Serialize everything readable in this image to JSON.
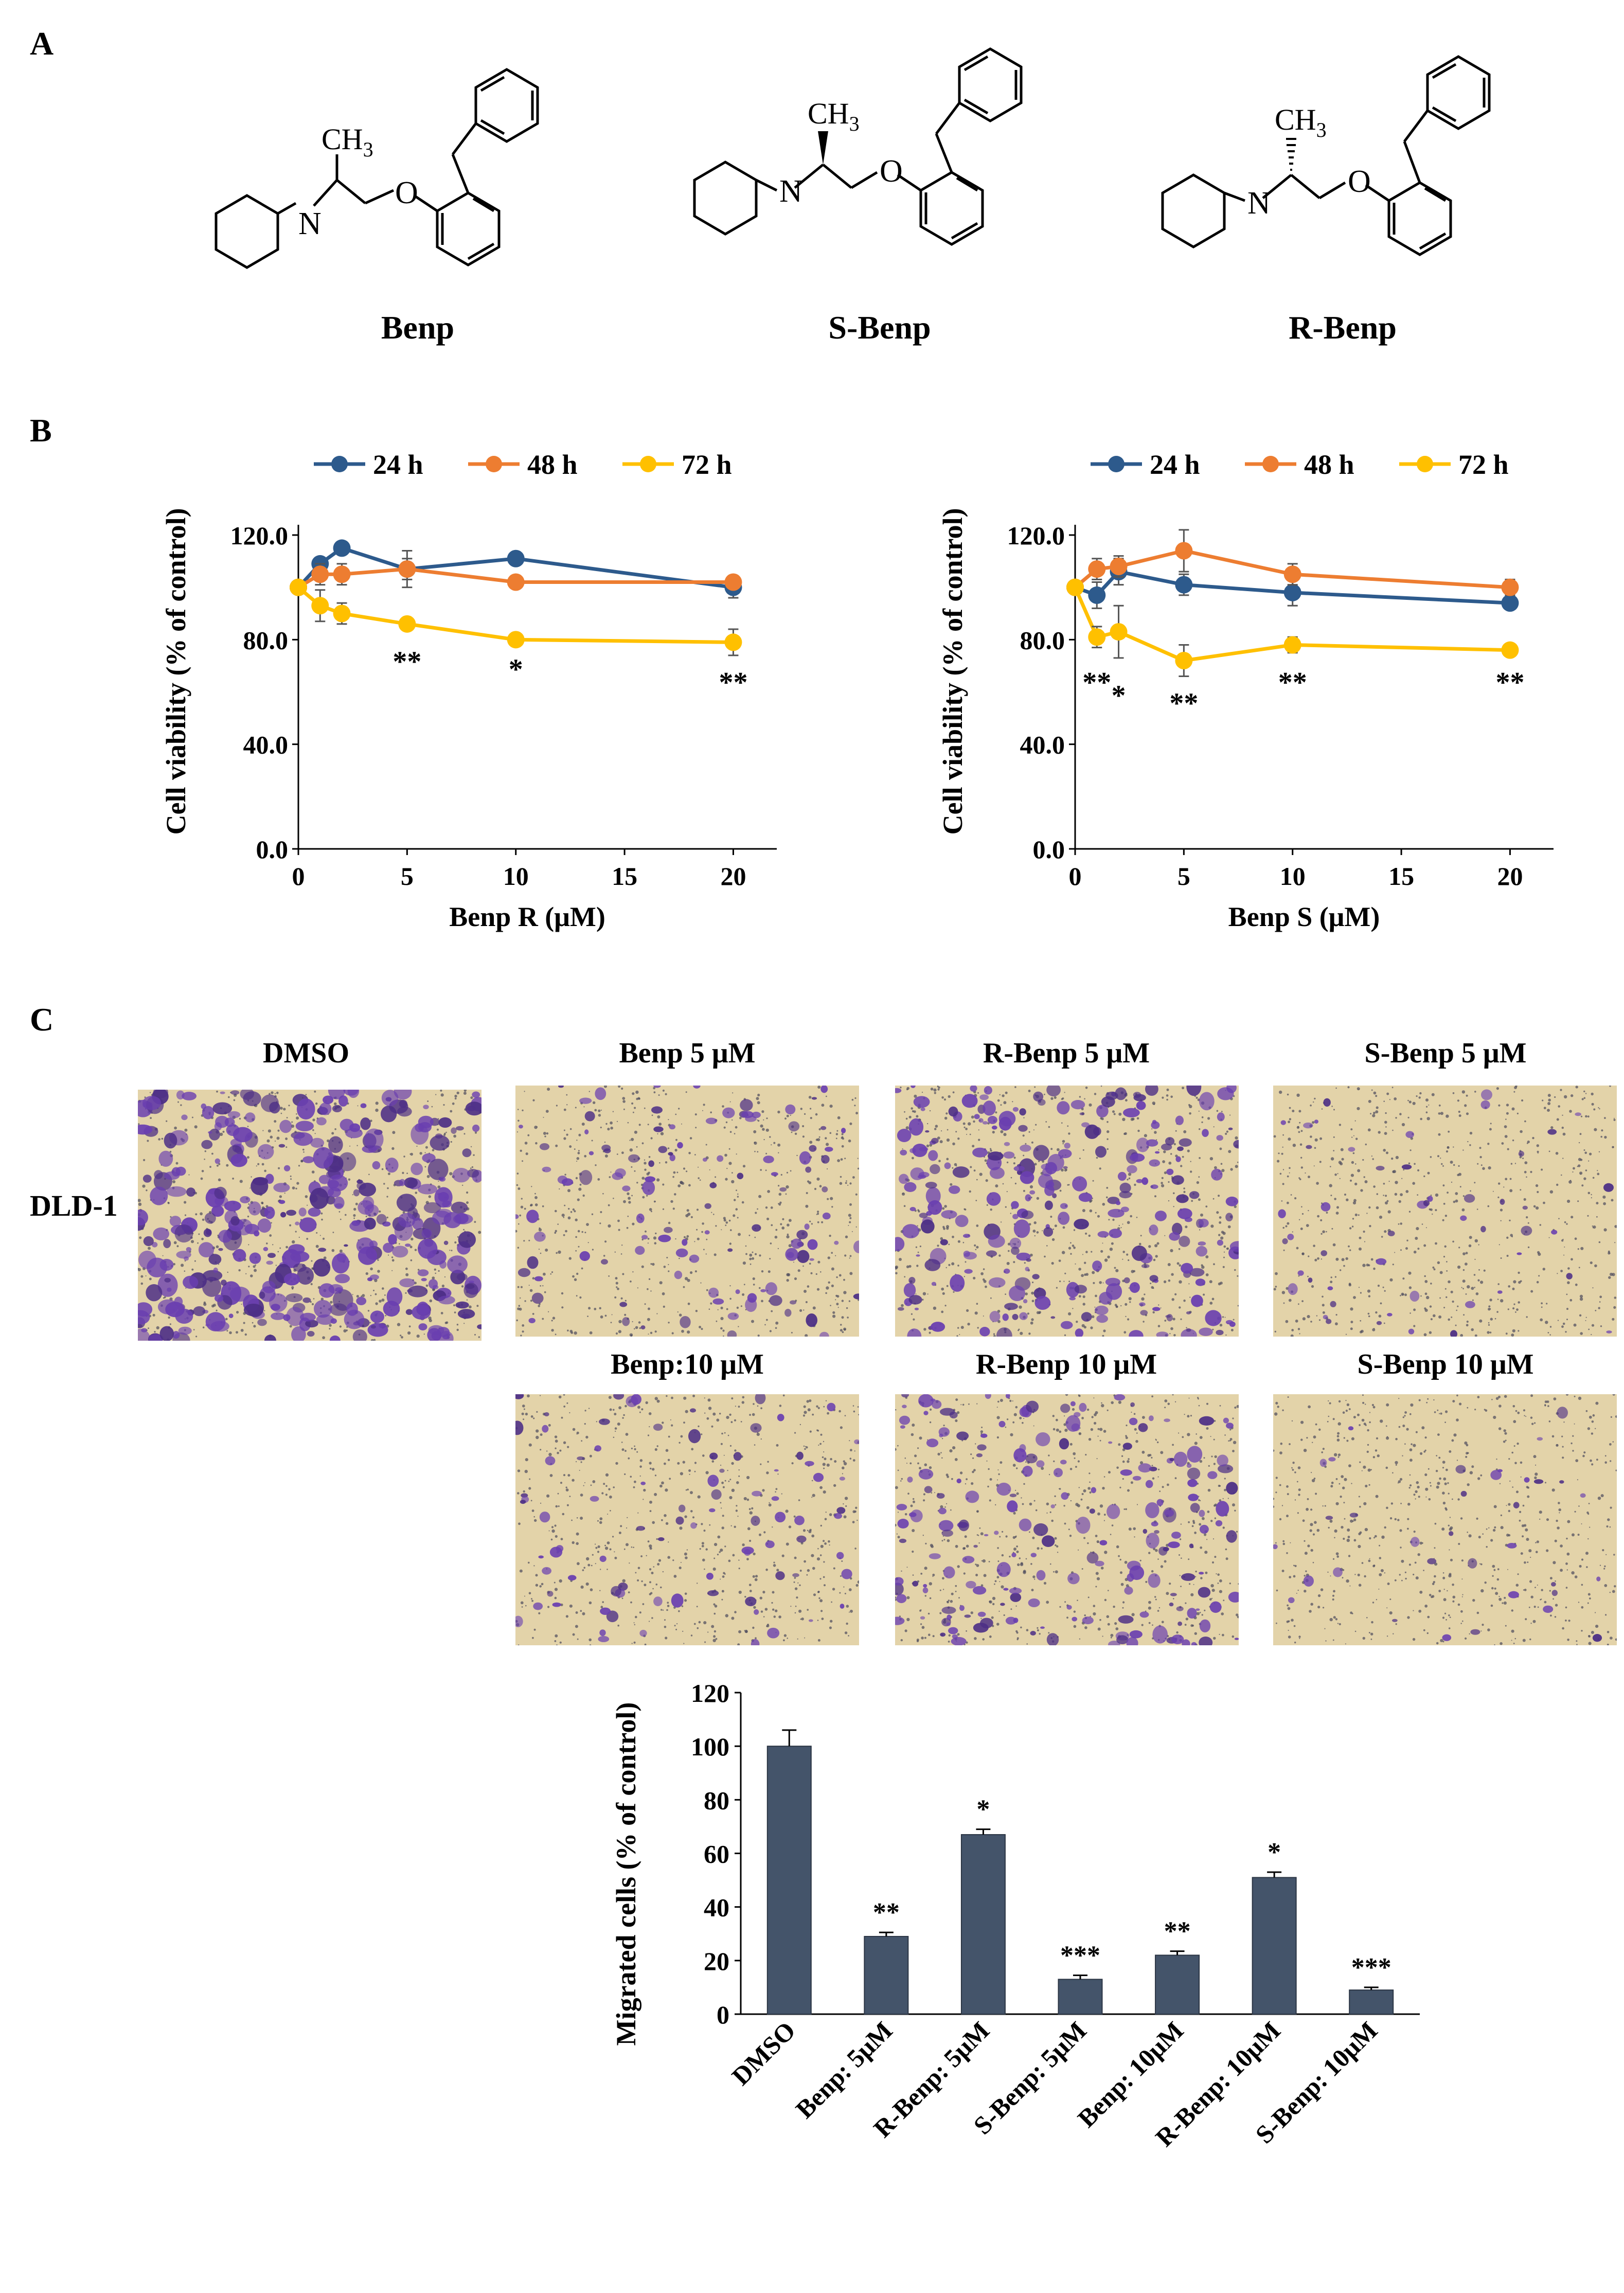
{
  "panels": {
    "a": "A",
    "b": "B",
    "c": "C"
  },
  "molecules": [
    {
      "name": "Benp",
      "ch3": "CH",
      "ch3_sub": "3",
      "n": "N",
      "o": "O",
      "stereo": "none"
    },
    {
      "name": "S-Benp",
      "ch3": "CH",
      "ch3_sub": "3",
      "n": "N",
      "o": "O",
      "stereo": "wedge"
    },
    {
      "name": "R-Benp",
      "ch3": "CH",
      "ch3_sub": "3",
      "n": "N",
      "o": "O",
      "stereo": "hash"
    }
  ],
  "chart_data": [
    {
      "type": "line",
      "xlabel": "Benp R (μM)",
      "ylabel": "Cell viability  (% of control)",
      "xlim": [
        0,
        22
      ],
      "ylim": [
        0,
        120
      ],
      "xticks": [
        0,
        5,
        10,
        15,
        20
      ],
      "yticks": [
        0,
        40,
        80,
        120
      ],
      "ytick_labels": [
        "0.0",
        "40.0",
        "80.0",
        "120.0"
      ],
      "legend": "top",
      "x": [
        0,
        1,
        2,
        5,
        10,
        20
      ],
      "series": [
        {
          "name": "24 h",
          "color": "#2d5a8c",
          "values": [
            100,
            109,
            115,
            107,
            111,
            100
          ],
          "errors": [
            2,
            2,
            2,
            7,
            2,
            4
          ]
        },
        {
          "name": "48 h",
          "color": "#ed7d31",
          "values": [
            100,
            105,
            105,
            107,
            102,
            102
          ],
          "errors": [
            2,
            4,
            4,
            4,
            2,
            2
          ]
        },
        {
          "name": "72 h",
          "color": "#ffc000",
          "values": [
            100,
            93,
            90,
            86,
            80,
            79
          ],
          "errors": [
            2,
            6,
            4,
            2,
            2,
            5
          ]
        }
      ],
      "annotations": [
        {
          "x": 5,
          "y": 68,
          "text": "**"
        },
        {
          "x": 10,
          "y": 65,
          "text": "*"
        },
        {
          "x": 20,
          "y": 60,
          "text": "**"
        }
      ]
    },
    {
      "type": "line",
      "xlabel": "Benp S (μM)",
      "ylabel": "Cell viability  (% of control)",
      "xlim": [
        0,
        22
      ],
      "ylim": [
        0,
        120
      ],
      "xticks": [
        0,
        5,
        10,
        15,
        20
      ],
      "yticks": [
        0,
        40,
        80,
        120
      ],
      "ytick_labels": [
        "0.0",
        "40.0",
        "80.0",
        "120.0"
      ],
      "legend": "top",
      "x": [
        0,
        1,
        2,
        5,
        10,
        20
      ],
      "series": [
        {
          "name": "24 h",
          "color": "#2d5a8c",
          "values": [
            100,
            97,
            106,
            101,
            98,
            94
          ],
          "errors": [
            2,
            5,
            5,
            4,
            5,
            2
          ]
        },
        {
          "name": "48 h",
          "color": "#ed7d31",
          "values": [
            100,
            107,
            108,
            114,
            105,
            100
          ],
          "errors": [
            2,
            4,
            4,
            8,
            4,
            3
          ]
        },
        {
          "name": "72 h",
          "color": "#ffc000",
          "values": [
            100,
            81,
            83,
            72,
            78,
            76
          ],
          "errors": [
            2,
            4,
            10,
            6,
            3,
            2
          ]
        }
      ],
      "annotations": [
        {
          "x": 1,
          "y": 60,
          "text": "**"
        },
        {
          "x": 2,
          "y": 55,
          "text": "*"
        },
        {
          "x": 5,
          "y": 52,
          "text": "**"
        },
        {
          "x": 10,
          "y": 60,
          "text": "**"
        },
        {
          "x": 20,
          "y": 60,
          "text": "**"
        }
      ]
    },
    {
      "type": "bar",
      "ylabel": "Migrated cells (% of control)",
      "ylim": [
        0,
        120
      ],
      "yticks": [
        0,
        20,
        40,
        60,
        80,
        100,
        120
      ],
      "categories": [
        "DMSO",
        "Benp: 5μM",
        "R-Benp: 5μM",
        "S-Benp: 5μM",
        "Benp: 10μM",
        "R-Benp: 10μM",
        "S-Benp: 10μM"
      ],
      "values": [
        100,
        29,
        67,
        13,
        22,
        51,
        9
      ],
      "errors": [
        6,
        1.5,
        2,
        1.5,
        1.5,
        2,
        1
      ],
      "significance": [
        "",
        "**",
        "*",
        "***",
        "**",
        "*",
        "***"
      ],
      "color": "#44546a"
    }
  ],
  "migration": {
    "cell_line": "DLD-1",
    "images": [
      {
        "title": "DMSO",
        "density": "high"
      },
      {
        "title": "Benp 5 μM",
        "density": "low"
      },
      {
        "title": "R-Benp 5 μM",
        "density": "medium-high"
      },
      {
        "title": "S-Benp 5 μM",
        "density": "very-low"
      },
      {
        "title": "Benp:10 μM",
        "density": "low"
      },
      {
        "title": "R-Benp 10 μM",
        "density": "medium"
      },
      {
        "title": "S-Benp 10 μM",
        "density": "very-low"
      }
    ]
  }
}
